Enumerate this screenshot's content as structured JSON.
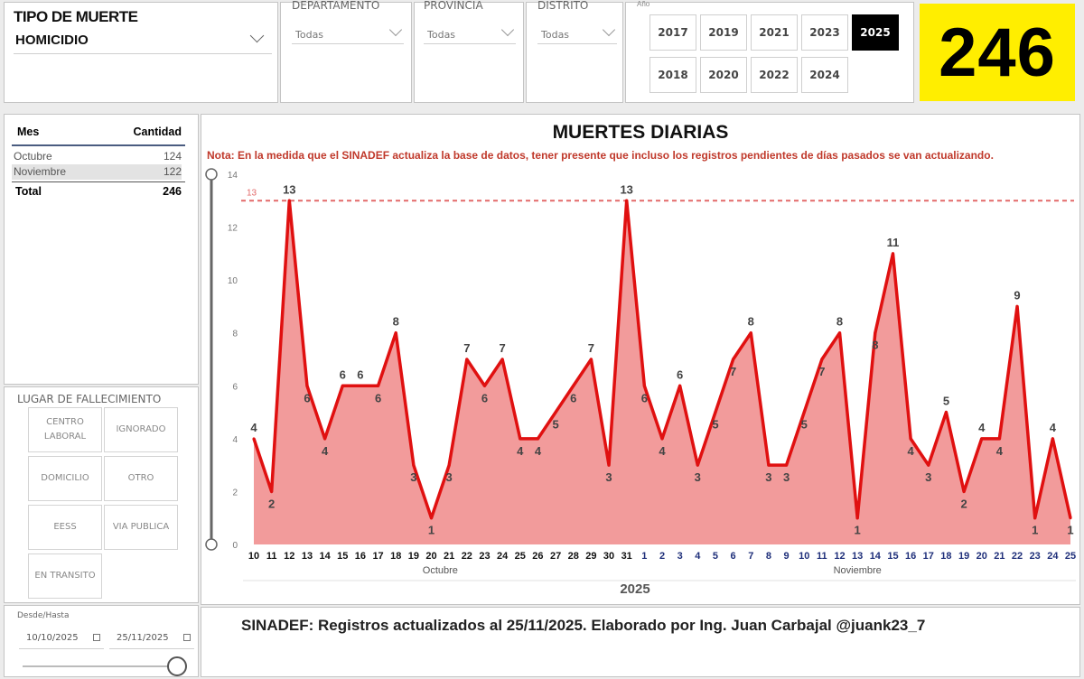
{
  "filters": {
    "tipo_label": "TIPO DE MUERTE",
    "tipo_value": "HOMICIDIO",
    "departamento_label": "DEPARTAMENTO",
    "departamento_value": "Todas",
    "provincia_label": "PROVINCIA",
    "provincia_value": "Todas",
    "distrito_label": "DISTRITO",
    "distrito_value": "Todas",
    "anio_label": "Año",
    "years_row1": [
      "2017",
      "2019",
      "2021",
      "2023",
      "2025"
    ],
    "years_row2": [
      "2018",
      "2020",
      "2022",
      "2024"
    ],
    "selected_year": "2025"
  },
  "kpi": {
    "total": "246",
    "bg_color": "#ffee00"
  },
  "month_table": {
    "header_mes": "Mes",
    "header_cantidad": "Cantidad",
    "rows": [
      {
        "mes": "Octubre",
        "cantidad": "124"
      },
      {
        "mes": "Noviembre",
        "cantidad": "122"
      }
    ],
    "total_label": "Total",
    "total_value": "246"
  },
  "lugar": {
    "title": "LUGAR DE FALLECIMIENTO",
    "buttons": [
      "CENTRO LABORAL",
      "IGNORADO",
      "DOMICILIO",
      "OTRO",
      "EESS",
      "VIA PUBLICA",
      "EN TRANSITO"
    ]
  },
  "date_range": {
    "label": "Desde/Hasta",
    "from": "10/10/2025",
    "to": "25/11/2025"
  },
  "footer_text": "SINADEF: Registros actualizados al 25/11/2025. Elaborado por Ing. Juan Carbajal @juank23_7",
  "chart_data": {
    "type": "area",
    "title": "MUERTES DIARIAS",
    "note": "Nota: En la medida que el SINADEF actualiza la base de datos, tener presente que incluso los registros pendientes de días pasados se van actualizando.",
    "x": [
      "10",
      "11",
      "12",
      "13",
      "14",
      "15",
      "16",
      "17",
      "18",
      "19",
      "20",
      "21",
      "22",
      "23",
      "24",
      "25",
      "26",
      "27",
      "28",
      "29",
      "30",
      "31",
      "1",
      "2",
      "3",
      "4",
      "5",
      "6",
      "7",
      "8",
      "9",
      "10",
      "11",
      "12",
      "13",
      "14",
      "15",
      "16",
      "17",
      "18",
      "19",
      "20",
      "21",
      "22",
      "23",
      "24",
      "25"
    ],
    "values": [
      4,
      2,
      13,
      6,
      4,
      6,
      6,
      6,
      8,
      3,
      1,
      3,
      7,
      6,
      7,
      4,
      4,
      5,
      6,
      7,
      3,
      13,
      6,
      4,
      6,
      3,
      5,
      7,
      8,
      3,
      3,
      5,
      7,
      8,
      1,
      8,
      11,
      4,
      3,
      5,
      2,
      4,
      4,
      9,
      1,
      4,
      1
    ],
    "month_groups": [
      {
        "name": "Octubre",
        "count": 22,
        "tick_color": "#111111"
      },
      {
        "name": "Noviembre",
        "count": 25,
        "tick_color": "#1f2f7a"
      }
    ],
    "xlabel": "2025",
    "ylim": [
      0,
      14
    ],
    "yticks": [
      0,
      2,
      4,
      6,
      8,
      10,
      12,
      14
    ],
    "reference_line": {
      "value": 13,
      "label": "13",
      "color": "#e36a6a"
    },
    "line_color": "#e01010",
    "fill_color": "#f08a8a",
    "grid": false
  }
}
